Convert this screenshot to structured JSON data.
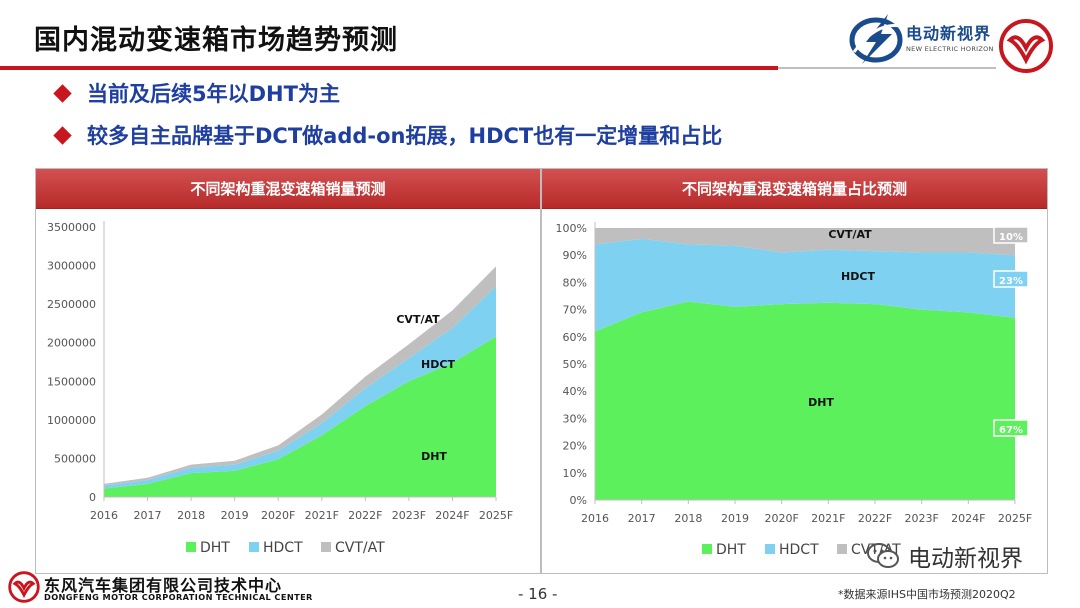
{
  "header": {
    "title": "国内混动变速箱市场趋势预测",
    "logo_cn": "电动新视界",
    "logo_en": "NEW ELECTRIC HORIZON"
  },
  "bullets": [
    "当前及后续5年以DHT为主",
    "较多自主品牌基于DCT做add-on拓展，HDCT也有一定增量和占比"
  ],
  "colors": {
    "dht": "#5df05d",
    "hdct": "#7fd1f2",
    "cvt": "#bfbfbf",
    "accent": "#c8161e",
    "bullet_text": "#1f3fa0"
  },
  "chart_data": [
    {
      "type": "area",
      "stacked": true,
      "title": "不同架构重混变速箱销量预测",
      "categories": [
        "2016",
        "2017",
        "2018",
        "2019",
        "2020F",
        "2021F",
        "2022F",
        "2023F",
        "2024F",
        "2025F"
      ],
      "series": [
        {
          "name": "DHT",
          "values": [
            110000,
            170000,
            310000,
            340000,
            490000,
            800000,
            1180000,
            1500000,
            1740000,
            2080000
          ]
        },
        {
          "name": "HDCT",
          "values": [
            40000,
            50000,
            70000,
            80000,
            110000,
            160000,
            230000,
            300000,
            450000,
            650000
          ]
        },
        {
          "name": "CVT/AT",
          "values": [
            20000,
            30000,
            40000,
            50000,
            70000,
            110000,
            150000,
            180000,
            230000,
            260000
          ]
        }
      ],
      "yticks": [
        "0",
        "500000",
        "1000000",
        "1500000",
        "2000000",
        "2500000",
        "3000000",
        "3500000"
      ],
      "ylim": [
        0,
        3500000
      ],
      "grid": false,
      "legend_position": "bottom",
      "area_labels": [
        "CVT/AT",
        "HDCT",
        "DHT"
      ]
    },
    {
      "type": "area",
      "stacked": true,
      "percent": true,
      "title": "不同架构重混变速箱销量占比预测",
      "categories": [
        "2016",
        "2017",
        "2018",
        "2019",
        "2020F",
        "2021F",
        "2022F",
        "2023F",
        "2024F",
        "2025F"
      ],
      "series": [
        {
          "name": "DHT",
          "values": [
            62,
            69,
            73,
            71,
            72,
            72.5,
            72,
            70,
            69,
            67
          ]
        },
        {
          "name": "HDCT",
          "values": [
            32,
            27,
            21,
            22.5,
            19,
            19.5,
            19.5,
            21,
            22,
            23
          ]
        },
        {
          "name": "CVT/AT",
          "values": [
            6,
            4,
            6,
            6.5,
            9,
            8,
            8.5,
            9,
            9,
            10
          ]
        }
      ],
      "yticks": [
        "0%",
        "10%",
        "20%",
        "30%",
        "40%",
        "50%",
        "60%",
        "70%",
        "80%",
        "90%",
        "100%"
      ],
      "ylim": [
        0,
        100
      ],
      "grid": false,
      "legend_position": "bottom",
      "area_labels": [
        "CVT/AT",
        "HDCT",
        "DHT"
      ],
      "end_labels": [
        "10%",
        "23%",
        "67%"
      ]
    }
  ],
  "footer": {
    "company_cn": "东风汽车集团有限公司技术中心",
    "company_en": "DONGFENG MOTOR CORPORATION TECHNICAL CENTER",
    "page": "- 16 -",
    "source": "*数据来源IHS中国市场预测2020Q2",
    "watermark": "电动新视界"
  }
}
